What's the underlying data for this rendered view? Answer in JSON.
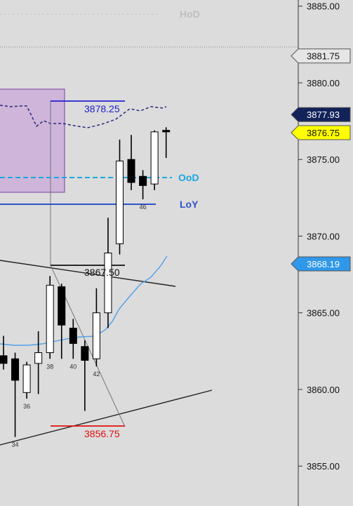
{
  "chart_data": {
    "type": "candlestick",
    "y_axis": {
      "ticks": [
        "3885.00",
        "3880.00",
        "3875.00",
        "3870.00",
        "3865.00",
        "3860.00",
        "3855.00"
      ],
      "range": [
        3852.4,
        3885.4
      ]
    },
    "candles": [
      {
        "open": 3862.2,
        "high": 3863.5,
        "low": 3861.3,
        "close": 3861.7,
        "color": "black"
      },
      {
        "open": 3862.0,
        "high": 3862.4,
        "low": 3856.9,
        "close": 3860.6,
        "color": "black",
        "label": "34"
      },
      {
        "open": 3859.8,
        "high": 3861.8,
        "low": 3859.4,
        "close": 3861.6,
        "color": "white",
        "label": "36"
      },
      {
        "open": 3861.7,
        "high": 3863.8,
        "low": 3859.7,
        "close": 3862.4,
        "color": "white"
      },
      {
        "open": 3862.4,
        "high": 3867.4,
        "low": 3862.0,
        "close": 3866.8,
        "color": "white",
        "label": "38"
      },
      {
        "open": 3866.7,
        "high": 3866.9,
        "low": 3862.0,
        "close": 3864.2,
        "color": "black"
      },
      {
        "open": 3864.0,
        "high": 3864.6,
        "low": 3862.0,
        "close": 3863.0,
        "color": "black",
        "label": "40"
      },
      {
        "open": 3862.8,
        "high": 3863.2,
        "low": 3858.6,
        "close": 3861.9,
        "color": "black"
      },
      {
        "open": 3862.0,
        "high": 3866.6,
        "low": 3861.5,
        "close": 3865.0,
        "color": "white",
        "label": "42"
      },
      {
        "open": 3865.0,
        "high": 3871.2,
        "low": 3864.0,
        "close": 3868.9,
        "color": "white"
      },
      {
        "open": 3869.5,
        "high": 3876.3,
        "low": 3868.8,
        "close": 3874.9,
        "color": "white"
      },
      {
        "open": 3875.0,
        "high": 3876.6,
        "low": 3873.0,
        "close": 3873.5,
        "color": "black"
      },
      {
        "open": 3873.9,
        "high": 3874.3,
        "low": 3872.4,
        "close": 3873.3,
        "color": "black",
        "label": "46"
      },
      {
        "open": 3873.4,
        "high": 3876.9,
        "low": 3873.0,
        "close": 3876.8,
        "color": "white"
      },
      {
        "open": 3876.9,
        "high": 3877.1,
        "low": 3875.1,
        "close": 3876.8,
        "color": "black"
      }
    ],
    "levels": [
      {
        "name": "HoD",
        "color": "#bfbfbf"
      },
      {
        "name": "OoD",
        "value": 3873.2,
        "color": "#1aa7e0"
      },
      {
        "name": "LoY",
        "value": 3871.5,
        "color": "#2f52c8"
      }
    ],
    "annotations": {
      "high_mark": "3878.25",
      "mid_mark": "3867.50",
      "low_mark": "3856.75"
    },
    "price_tags": [
      {
        "label": "3881.75",
        "value": 3881.75,
        "bg": "#e6e6e6",
        "fg": "#111111"
      },
      {
        "label": "3877.93",
        "value": 3877.93,
        "bg": "#12235a",
        "fg": "#ffffff"
      },
      {
        "label": "3876.75",
        "value": 3876.75,
        "bg": "#ffff00",
        "fg": "#111111"
      },
      {
        "label": "3868.19",
        "value": 3868.19,
        "bg": "#2f98ea",
        "fg": "#ffffff"
      }
    ],
    "grid": false
  }
}
